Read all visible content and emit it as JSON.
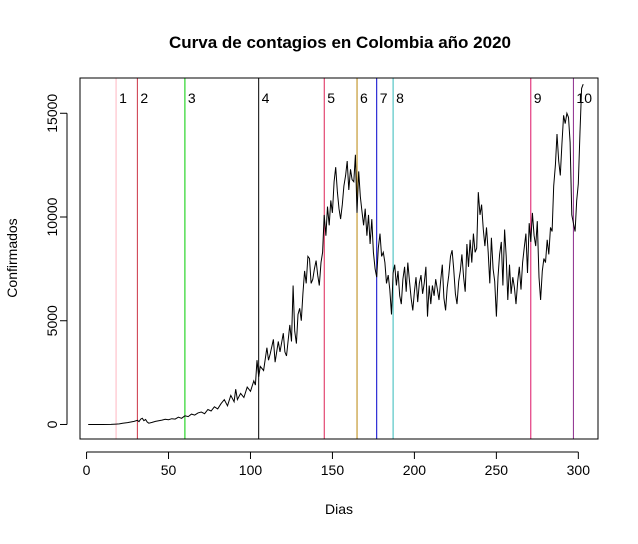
{
  "chart_data": {
    "type": "line",
    "title": "Curva de contagios en Colombia año 2020",
    "xlabel": "Dias",
    "ylabel": "Confirmados",
    "xlim": [
      -4,
      312
    ],
    "ylim": [
      -700,
      16700
    ],
    "x_ticks": [
      0,
      50,
      100,
      150,
      200,
      250,
      300
    ],
    "y_ticks": [
      0,
      5000,
      10000,
      15000
    ],
    "grid": false,
    "legend": "none",
    "series": [
      {
        "color": "#000000",
        "points": [
          [
            1,
            0
          ],
          [
            5,
            0
          ],
          [
            10,
            0
          ],
          [
            15,
            5
          ],
          [
            18,
            20
          ],
          [
            20,
            30
          ],
          [
            22,
            60
          ],
          [
            25,
            90
          ],
          [
            27,
            120
          ],
          [
            29,
            150
          ],
          [
            31,
            200
          ],
          [
            32,
            140
          ],
          [
            33,
            260
          ],
          [
            34,
            300
          ],
          [
            35,
            180
          ],
          [
            36,
            240
          ],
          [
            37,
            120
          ],
          [
            38,
            60
          ],
          [
            40,
            100
          ],
          [
            42,
            150
          ],
          [
            44,
            180
          ],
          [
            46,
            210
          ],
          [
            48,
            250
          ],
          [
            50,
            230
          ],
          [
            52,
            280
          ],
          [
            54,
            260
          ],
          [
            56,
            350
          ],
          [
            58,
            300
          ],
          [
            60,
            420
          ],
          [
            62,
            380
          ],
          [
            64,
            500
          ],
          [
            66,
            450
          ],
          [
            68,
            560
          ],
          [
            70,
            600
          ],
          [
            72,
            520
          ],
          [
            74,
            720
          ],
          [
            76,
            650
          ],
          [
            78,
            850
          ],
          [
            80,
            750
          ],
          [
            82,
            1000
          ],
          [
            84,
            1200
          ],
          [
            86,
            900
          ],
          [
            88,
            1400
          ],
          [
            90,
            1100
          ],
          [
            91,
            1700
          ],
          [
            92,
            1200
          ],
          [
            94,
            1500
          ],
          [
            96,
            1300
          ],
          [
            98,
            1800
          ],
          [
            100,
            1600
          ],
          [
            102,
            2100
          ],
          [
            103,
            1900
          ],
          [
            104,
            3100
          ],
          [
            105,
            2300
          ],
          [
            106,
            2800
          ],
          [
            108,
            2600
          ],
          [
            110,
            3700
          ],
          [
            111,
            3100
          ],
          [
            112,
            3400
          ],
          [
            114,
            4100
          ],
          [
            115,
            3000
          ],
          [
            117,
            4000
          ],
          [
            118,
            3500
          ],
          [
            120,
            4400
          ],
          [
            121,
            3500
          ],
          [
            122,
            3300
          ],
          [
            124,
            4800
          ],
          [
            125,
            4000
          ],
          [
            126,
            6700
          ],
          [
            127,
            4500
          ],
          [
            128,
            3900
          ],
          [
            129,
            5300
          ],
          [
            130,
            5600
          ],
          [
            131,
            5000
          ],
          [
            132,
            6300
          ],
          [
            133,
            7400
          ],
          [
            134,
            6800
          ],
          [
            135,
            8100
          ],
          [
            136,
            8000
          ],
          [
            137,
            6800
          ],
          [
            138,
            7000
          ],
          [
            139,
            7500
          ],
          [
            140,
            7900
          ],
          [
            141,
            7200
          ],
          [
            142,
            6700
          ],
          [
            143,
            7800
          ],
          [
            144,
            8300
          ],
          [
            145,
            10100
          ],
          [
            146,
            9100
          ],
          [
            147,
            10500
          ],
          [
            148,
            9600
          ],
          [
            149,
            10800
          ],
          [
            150,
            10200
          ],
          [
            151,
            11700
          ],
          [
            152,
            12400
          ],
          [
            153,
            11200
          ],
          [
            154,
            10400
          ],
          [
            155,
            9900
          ],
          [
            156,
            10600
          ],
          [
            157,
            11500
          ],
          [
            158,
            12000
          ],
          [
            159,
            12700
          ],
          [
            160,
            11300
          ],
          [
            161,
            12300
          ],
          [
            162,
            11800
          ],
          [
            163,
            11700
          ],
          [
            164,
            13000
          ],
          [
            165,
            10200
          ],
          [
            166,
            12200
          ],
          [
            167,
            11000
          ],
          [
            168,
            10300
          ],
          [
            169,
            9600
          ],
          [
            170,
            10400
          ],
          [
            171,
            9100
          ],
          [
            172,
            10100
          ],
          [
            173,
            8700
          ],
          [
            174,
            9900
          ],
          [
            175,
            8300
          ],
          [
            176,
            7500
          ],
          [
            177,
            7100
          ],
          [
            178,
            8500
          ],
          [
            179,
            9200
          ],
          [
            180,
            8100
          ],
          [
            181,
            8300
          ],
          [
            182,
            7800
          ],
          [
            183,
            6800
          ],
          [
            184,
            7200
          ],
          [
            185,
            6500
          ],
          [
            186,
            5300
          ],
          [
            187,
            7300
          ],
          [
            188,
            7700
          ],
          [
            189,
            6700
          ],
          [
            190,
            7400
          ],
          [
            191,
            6200
          ],
          [
            192,
            5800
          ],
          [
            193,
            7000
          ],
          [
            194,
            7600
          ],
          [
            195,
            6400
          ],
          [
            196,
            7800
          ],
          [
            197,
            6900
          ],
          [
            198,
            6100
          ],
          [
            199,
            5500
          ],
          [
            200,
            6400
          ],
          [
            201,
            7100
          ],
          [
            202,
            5900
          ],
          [
            203,
            6800
          ],
          [
            204,
            7200
          ],
          [
            205,
            6300
          ],
          [
            206,
            6800
          ],
          [
            207,
            7600
          ],
          [
            208,
            5200
          ],
          [
            209,
            6700
          ],
          [
            210,
            5800
          ],
          [
            211,
            6700
          ],
          [
            212,
            6200
          ],
          [
            213,
            7000
          ],
          [
            214,
            6500
          ],
          [
            215,
            6000
          ],
          [
            216,
            6900
          ],
          [
            217,
            7700
          ],
          [
            218,
            6100
          ],
          [
            219,
            5500
          ],
          [
            220,
            6600
          ],
          [
            221,
            7200
          ],
          [
            222,
            8100
          ],
          [
            223,
            8400
          ],
          [
            224,
            7500
          ],
          [
            225,
            6300
          ],
          [
            226,
            5800
          ],
          [
            227,
            6900
          ],
          [
            228,
            7400
          ],
          [
            229,
            8200
          ],
          [
            230,
            7100
          ],
          [
            231,
            6400
          ],
          [
            232,
            8700
          ],
          [
            233,
            7600
          ],
          [
            234,
            8900
          ],
          [
            235,
            7800
          ],
          [
            236,
            9200
          ],
          [
            237,
            8300
          ],
          [
            238,
            8500
          ],
          [
            239,
            11200
          ],
          [
            240,
            10100
          ],
          [
            241,
            10600
          ],
          [
            242,
            9400
          ],
          [
            243,
            8600
          ],
          [
            244,
            9500
          ],
          [
            245,
            8300
          ],
          [
            246,
            6800
          ],
          [
            247,
            9000
          ],
          [
            248,
            7500
          ],
          [
            249,
            6900
          ],
          [
            250,
            5200
          ],
          [
            251,
            7100
          ],
          [
            252,
            8200
          ],
          [
            253,
            8800
          ],
          [
            254,
            6700
          ],
          [
            255,
            9400
          ],
          [
            256,
            8100
          ],
          [
            257,
            6000
          ],
          [
            258,
            7700
          ],
          [
            259,
            6300
          ],
          [
            260,
            7100
          ],
          [
            261,
            6600
          ],
          [
            262,
            5800
          ],
          [
            263,
            6900
          ],
          [
            264,
            7600
          ],
          [
            265,
            6500
          ],
          [
            266,
            7800
          ],
          [
            267,
            8500
          ],
          [
            268,
            9200
          ],
          [
            269,
            7300
          ],
          [
            270,
            9700
          ],
          [
            271,
            8800
          ],
          [
            272,
            10200
          ],
          [
            273,
            9100
          ],
          [
            274,
            8600
          ],
          [
            275,
            9800
          ],
          [
            276,
            7100
          ],
          [
            277,
            6000
          ],
          [
            278,
            7400
          ],
          [
            279,
            8000
          ],
          [
            280,
            7800
          ],
          [
            281,
            8900
          ],
          [
            282,
            8200
          ],
          [
            283,
            9500
          ],
          [
            284,
            9300
          ],
          [
            285,
            11500
          ],
          [
            286,
            12500
          ],
          [
            287,
            14000
          ],
          [
            288,
            12700
          ],
          [
            289,
            12000
          ],
          [
            290,
            13500
          ],
          [
            291,
            14900
          ],
          [
            292,
            14500
          ],
          [
            293,
            15000
          ],
          [
            294,
            14800
          ],
          [
            295,
            13600
          ],
          [
            296,
            10100
          ],
          [
            297,
            9700
          ],
          [
            298,
            9300
          ],
          [
            299,
            10800
          ],
          [
            300,
            11600
          ],
          [
            301,
            14100
          ],
          [
            302,
            16200
          ],
          [
            303,
            16400
          ]
        ]
      }
    ],
    "vertical_lines": [
      {
        "label": "1",
        "x": 18,
        "color": "#ffb6c1"
      },
      {
        "label": "2",
        "x": 31,
        "color": "#cc3344"
      },
      {
        "label": "3",
        "x": 60,
        "color": "#00cc00"
      },
      {
        "label": "4",
        "x": 105,
        "color": "#000000"
      },
      {
        "label": "5",
        "x": 145,
        "color": "#dd2255"
      },
      {
        "label": "6",
        "x": 165,
        "color": "#b8860b"
      },
      {
        "label": "7",
        "x": 177,
        "color": "#0000cc"
      },
      {
        "label": "8",
        "x": 187,
        "color": "#33bbbb"
      },
      {
        "label": "9",
        "x": 271,
        "color": "#dd1166"
      },
      {
        "label": "10",
        "x": 297,
        "color": "#8b2a8b"
      }
    ]
  }
}
